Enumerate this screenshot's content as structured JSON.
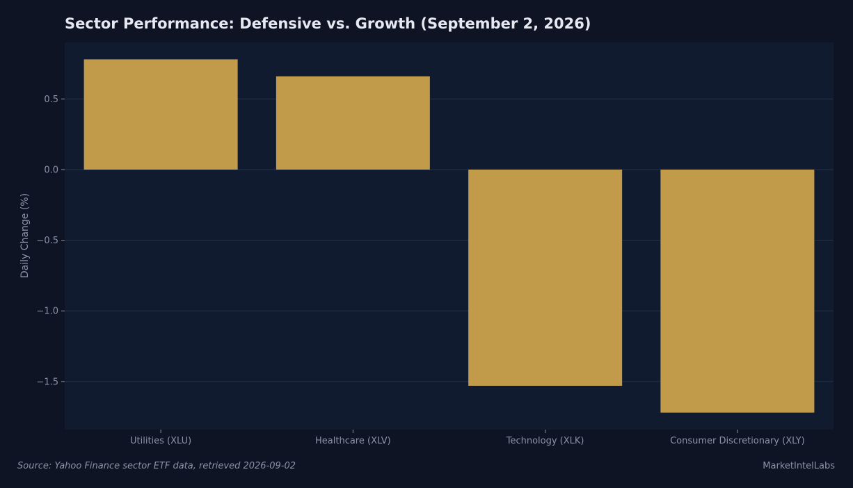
{
  "chart_data": {
    "type": "bar",
    "title": "Sector Performance: Defensive vs. Growth (September 2, 2026)",
    "xlabel": "",
    "ylabel": "Daily Change (%)",
    "categories": [
      "Utilities (XLU)",
      "Healthcare (XLV)",
      "Technology (XLK)",
      "Consumer Discretionary (XLY)"
    ],
    "values": [
      0.78,
      0.66,
      -1.53,
      -1.72
    ],
    "ylim": [
      -1.84,
      0.9
    ],
    "yticks": [
      -1.5,
      -1.0,
      -0.5,
      0.0,
      0.5
    ],
    "ytick_labels": [
      "−1.5",
      "−1.0",
      "−0.5",
      "0.0",
      "0.5"
    ],
    "grid": true,
    "legend": "none",
    "bar_color": "#c19a4a",
    "plot_background": "#111b30",
    "page_background": "#0f1424",
    "grid_color": "#243049"
  },
  "footer": {
    "source": "Source: Yahoo Finance sector ETF data, retrieved 2026-09-02",
    "brand": "MarketIntelLabs"
  }
}
